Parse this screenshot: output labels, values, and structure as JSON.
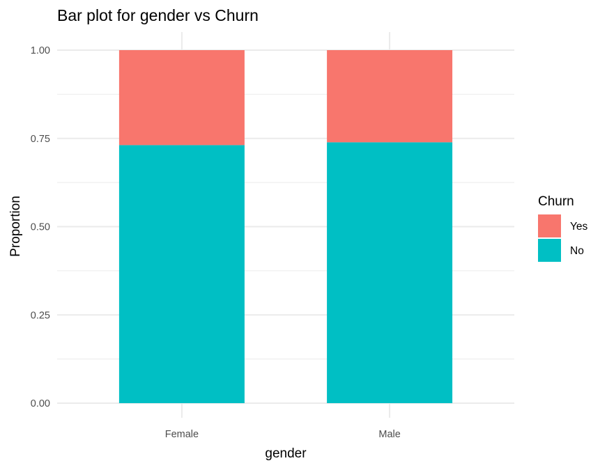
{
  "chart_data": {
    "type": "bar",
    "stacked": true,
    "title": "Bar plot for gender vs Churn",
    "xlabel": "gender",
    "ylabel": "Proportion",
    "categories": [
      "Female",
      "Male"
    ],
    "series": [
      {
        "name": "No",
        "values": [
          0.731,
          0.739
        ],
        "color": "#00BFC4"
      },
      {
        "name": "Yes",
        "values": [
          0.269,
          0.261
        ],
        "color": "#F8766D"
      }
    ],
    "ylim": [
      0,
      1
    ],
    "yticks": [
      "0.00",
      "0.25",
      "0.50",
      "0.75",
      "1.00"
    ],
    "grid": true,
    "legend": {
      "title": "Churn",
      "position": "right",
      "items": [
        {
          "label": "Yes",
          "color": "#F8766D"
        },
        {
          "label": "No",
          "color": "#00BFC4"
        }
      ]
    }
  }
}
